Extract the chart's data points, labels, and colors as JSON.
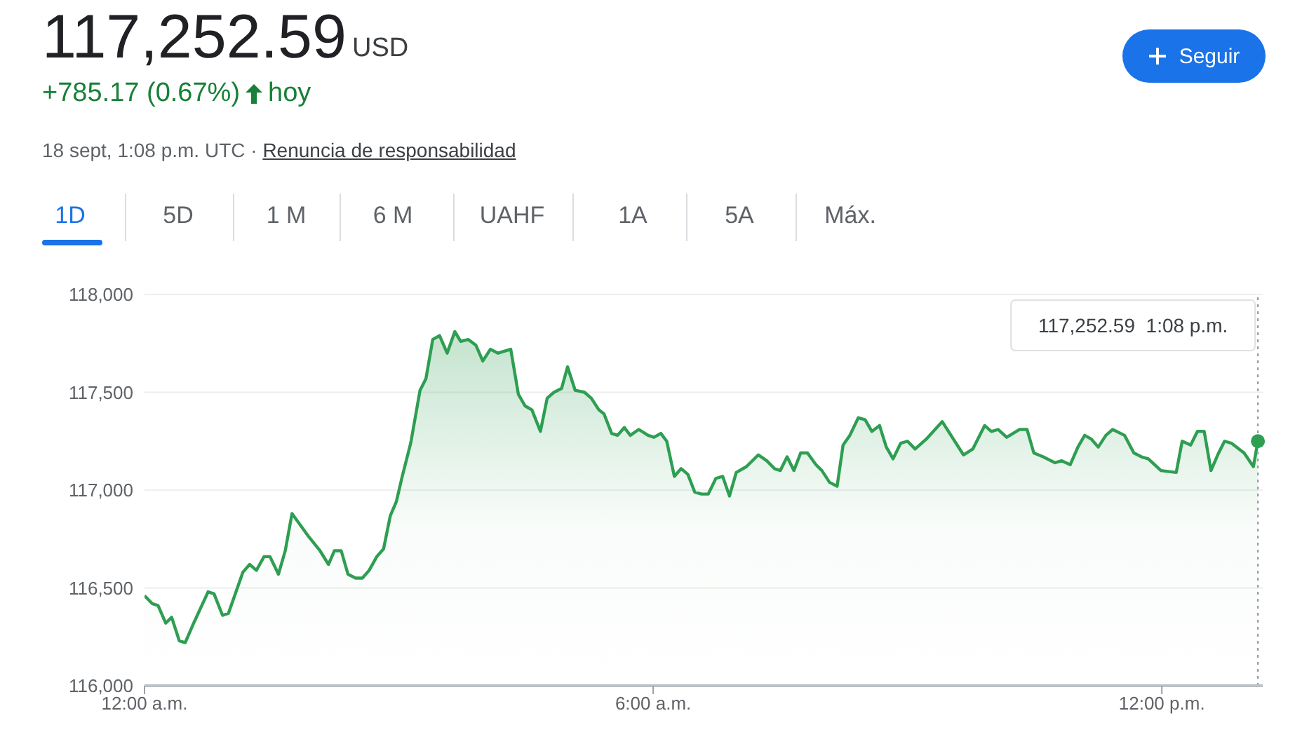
{
  "chart_data": {
    "type": "area",
    "title": "117,252.59",
    "annotations": [
      "USD",
      "+785.17 (0.67%)",
      "hoy",
      "18 sept, 1:08 p.m. UTC ·",
      "Renuncia de responsabilidad",
      "Seguir",
      "1D",
      "5D",
      "1 M",
      "6 M",
      "UAHF",
      "1A",
      "5A",
      "Máx.",
      "117,252.59  1:08 p.m."
    ],
    "x": [
      0,
      0.09,
      0.16,
      0.25,
      0.32,
      0.41,
      0.48,
      0.58,
      0.75,
      0.82,
      0.92,
      0.99,
      1.16,
      1.24,
      1.32,
      1.41,
      1.48,
      1.58,
      1.66,
      1.74,
      1.94,
      2.07,
      2.17,
      2.24,
      2.32,
      2.4,
      2.49,
      2.57,
      2.65,
      2.74,
      2.82,
      2.9,
      2.97,
      3.04,
      3.14,
      3.25,
      3.32,
      3.4,
      3.48,
      3.57,
      3.66,
      3.73,
      3.82,
      3.91,
      3.99,
      4.08,
      4.17,
      4.32,
      4.41,
      4.49,
      4.57,
      4.67,
      4.75,
      4.83,
      4.92,
      4.99,
      5.08,
      5.19,
      5.27,
      5.36,
      5.42,
      5.51,
      5.58,
      5.66,
      5.73,
      5.83,
      5.94,
      6.01,
      6.09,
      6.16,
      6.25,
      6.33,
      6.41,
      6.49,
      6.57,
      6.65,
      6.74,
      6.82,
      6.9,
      6.98,
      7.1,
      7.24,
      7.34,
      7.43,
      7.5,
      7.58,
      7.66,
      7.74,
      7.82,
      7.92,
      7.99,
      8.08,
      8.17,
      8.24,
      8.32,
      8.42,
      8.5,
      8.58,
      8.67,
      8.75,
      8.83,
      8.92,
      9,
      9.09,
      9.22,
      9.41,
      9.66,
      9.77,
      9.91,
      9.99,
      10.07,
      10.17,
      10.32,
      10.41,
      10.49,
      10.6,
      10.74,
      10.82,
      10.92,
      11.01,
      11.09,
      11.17,
      11.25,
      11.34,
      11.42,
      11.56,
      11.67,
      11.76,
      11.84,
      11.99,
      12.17,
      12.24,
      12.34,
      12.42,
      12.5,
      12.58,
      12.67,
      12.74,
      12.82,
      12.97,
      13.08,
      13.1333
    ],
    "series": [
      {
        "color": "#2e9e52",
        "values": [
          116460,
          116420,
          116410,
          116320,
          116350,
          116230,
          116220,
          116320,
          116480,
          116470,
          116360,
          116370,
          116580,
          116620,
          116590,
          116660,
          116660,
          116570,
          116690,
          116880,
          116760,
          116690,
          116620,
          116690,
          116690,
          116570,
          116550,
          116550,
          116590,
          116660,
          116700,
          116870,
          116940,
          117070,
          117240,
          117510,
          117570,
          117770,
          117790,
          117700,
          117810,
          117760,
          117770,
          117740,
          117660,
          117720,
          117700,
          117720,
          117490,
          117430,
          117410,
          117300,
          117470,
          117500,
          117520,
          117630,
          117510,
          117500,
          117470,
          117410,
          117390,
          117290,
          117280,
          117320,
          117280,
          117310,
          117280,
          117270,
          117290,
          117250,
          117070,
          117110,
          117080,
          116990,
          116980,
          116980,
          117060,
          117070,
          116970,
          117090,
          117120,
          117180,
          117150,
          117110,
          117100,
          117170,
          117100,
          117190,
          117190,
          117130,
          117100,
          117040,
          117020,
          117230,
          117280,
          117370,
          117360,
          117300,
          117330,
          117220,
          117160,
          117240,
          117250,
          117210,
          117260,
          117350,
          117180,
          117210,
          117330,
          117300,
          117310,
          117270,
          117310,
          117310,
          117190,
          117170,
          117140,
          117150,
          117130,
          117220,
          117280,
          117260,
          117220,
          117280,
          117310,
          117280,
          117190,
          117170,
          117160,
          117100,
          117090,
          117250,
          117230,
          117300,
          117300,
          117100,
          117190,
          117250,
          117240,
          117190,
          117120,
          117250
        ]
      }
    ],
    "xlim": [
      0,
      13.19
    ],
    "xticks": [
      {
        "value": 0,
        "label": "12:00 a.m."
      },
      {
        "value": 6,
        "label": "6:00 a.m."
      },
      {
        "value": 12,
        "label": "12:00 p.m."
      }
    ],
    "ylim": [
      116000,
      118000
    ],
    "yticks": [
      {
        "value": 116000,
        "label": "116,000"
      },
      {
        "value": 116500,
        "label": "116,500"
      },
      {
        "value": 117000,
        "label": "117,000"
      },
      {
        "value": 117500,
        "label": "117,500"
      },
      {
        "value": 118000,
        "label": "118,000"
      }
    ],
    "ref_lines": [
      {
        "axis": "x",
        "value": 13.1333,
        "color": "#9aa0a6",
        "line_style": "dotted"
      }
    ],
    "grid": "y",
    "marker": "none",
    "line_style": "solid"
  }
}
